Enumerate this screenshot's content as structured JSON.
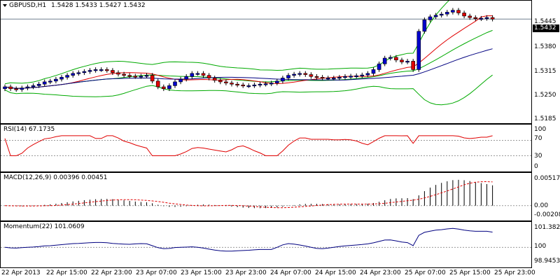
{
  "main": {
    "symbol": "GBPUSD,H1",
    "ohlc": "1.5428 1.5433 1.5427 1.5432",
    "current_price": "1.5432",
    "ticks": [
      "1.5445",
      "1.5380",
      "1.5315",
      "1.5250",
      "1.5185"
    ]
  },
  "rsi": {
    "title": "RSI(14) 67.1735",
    "ticks": [
      "100",
      "70",
      "30",
      "0"
    ]
  },
  "macd": {
    "title": "MACD(12,26,9) 0.00396 0.00451",
    "ticks": [
      "0.00517",
      "0.00",
      "-0.00208"
    ]
  },
  "momentum": {
    "title": "Momentum(22) 101.0609",
    "ticks": [
      "101.3824",
      "100",
      "98.9453"
    ]
  },
  "xaxis": {
    "labels": [
      "22 Apr 2013",
      "22 Apr 15:00",
      "22 Apr 23:00",
      "23 Apr 07:00",
      "23 Apr 15:00",
      "23 Apr 23:00",
      "24 Apr 07:00",
      "24 Apr 15:00",
      "24 Apr 23:00",
      "25 Apr 07:00",
      "25 Apr 15:00",
      "25 Apr 23:00"
    ]
  },
  "colors": {
    "bull": "#0000cc",
    "bear": "#e00000",
    "bands": "#00aa00",
    "ma_fast": "#e00000",
    "ma_slow": "#000080",
    "rsi": "#e00000",
    "macd_signal": "#e00000",
    "momentum": "#000080"
  },
  "chart_data": {
    "type": "line",
    "closes": [
      1.5255,
      1.525,
      1.5248,
      1.5252,
      1.5255,
      1.5258,
      1.5262,
      1.5268,
      1.527,
      1.5275,
      1.528,
      1.5285,
      1.529,
      1.5292,
      1.5295,
      1.5298,
      1.53,
      1.53,
      1.5298,
      1.5292,
      1.5288,
      1.5285,
      1.5283,
      1.5282,
      1.5283,
      1.5285,
      1.527,
      1.5255,
      1.525,
      1.5258,
      1.5268,
      1.5275,
      1.5282,
      1.529,
      1.529,
      1.5285,
      1.5278,
      1.5272,
      1.5268,
      1.5265,
      1.5262,
      1.526,
      1.5258,
      1.5258,
      1.526,
      1.5262,
      1.5263,
      1.5265,
      1.527,
      1.5278,
      1.5285,
      1.5288,
      1.529,
      1.5287,
      1.5282,
      1.528,
      1.5278,
      1.5278,
      1.5278,
      1.528,
      1.5282,
      1.5283,
      1.5284,
      1.5286,
      1.529,
      1.53,
      1.5315,
      1.533,
      1.5332,
      1.5325,
      1.532,
      1.5322,
      1.53,
      1.54,
      1.543,
      1.5438,
      1.5442,
      1.5445,
      1.545,
      1.5455,
      1.5448,
      1.544,
      1.5436,
      1.5433,
      1.5434,
      1.5436,
      1.5432
    ]
  }
}
